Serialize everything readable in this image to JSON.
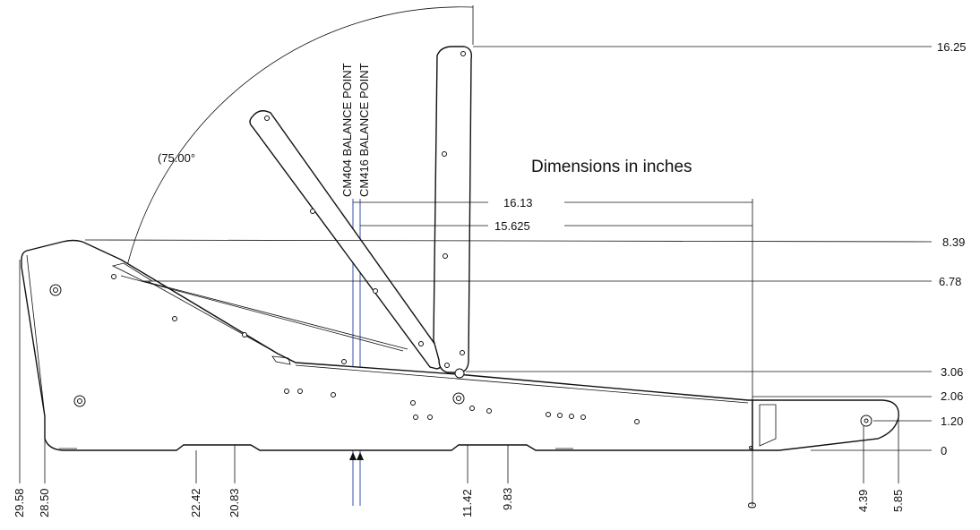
{
  "title": "Dimensions in inches",
  "angle_label": "(75.00°",
  "balance_points": [
    {
      "label": "CM404 BALANCE POINT"
    },
    {
      "label": "CM416 BALANCE POINT"
    }
  ],
  "balance_dims": {
    "cm404": "16.13",
    "cm416": "15.625"
  },
  "right_dims": [
    "16.25",
    "8.39",
    "6.78",
    "3.06",
    "2.06",
    "1.20",
    "0"
  ],
  "bottom_dims": [
    "29.58",
    "28.50",
    "22.42",
    "20.83",
    "11.42",
    "9.83",
    "0",
    "4.39",
    "5.85"
  ],
  "colors": {
    "line": "#111111",
    "balance_line": "#5b6fb8"
  }
}
